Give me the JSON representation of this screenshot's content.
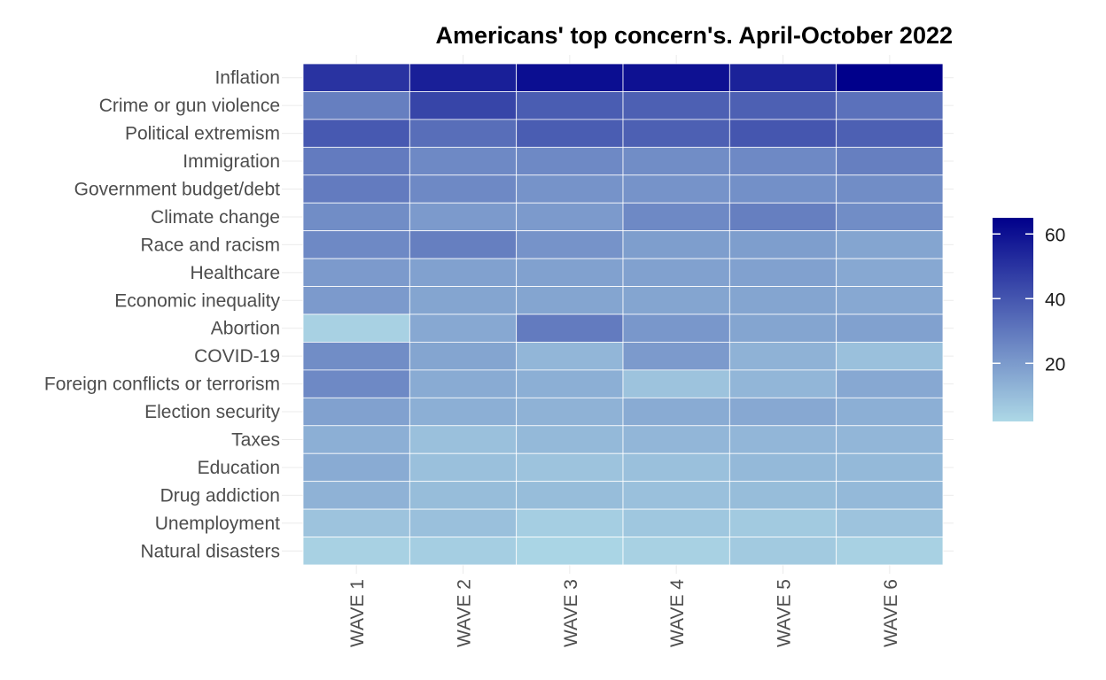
{
  "chart_data": {
    "type": "heatmap",
    "title": "Americans' top concern's. April-October 2022",
    "xlabel": "",
    "ylabel": "",
    "x": [
      "WAVE 1",
      "WAVE 2",
      "WAVE 3",
      "WAVE 4",
      "WAVE 5",
      "WAVE 6"
    ],
    "y": [
      "Inflation",
      "Crime or gun violence",
      "Political extremism",
      "Immigration",
      "Government budget/debt",
      "Climate change",
      "Race and racism",
      "Healthcare",
      "Economic inequality",
      "Abortion",
      "COVID-19",
      "Foreign conflicts or terrorism",
      "Election security",
      "Taxes",
      "Education",
      "Drug addiction",
      "Unemployment",
      "Natural disasters"
    ],
    "values": [
      [
        50,
        56,
        61,
        60,
        55,
        65
      ],
      [
        28,
        45,
        38,
        37,
        37,
        32
      ],
      [
        39,
        33,
        38,
        37,
        40,
        37
      ],
      [
        29,
        25,
        25,
        24,
        25,
        28
      ],
      [
        29,
        25,
        22,
        22,
        23,
        24
      ],
      [
        24,
        20,
        20,
        25,
        28,
        24
      ],
      [
        25,
        28,
        22,
        19,
        19,
        17
      ],
      [
        20,
        18,
        18,
        18,
        18,
        16
      ],
      [
        20,
        17,
        17,
        17,
        17,
        16
      ],
      [
        4,
        16,
        29,
        21,
        17,
        18
      ],
      [
        24,
        17,
        12,
        20,
        13,
        9
      ],
      [
        25,
        15,
        14,
        8,
        12,
        16
      ],
      [
        18,
        14,
        13,
        15,
        16,
        14
      ],
      [
        14,
        9,
        11,
        12,
        12,
        12
      ],
      [
        15,
        9,
        8,
        9,
        11,
        11
      ],
      [
        13,
        10,
        10,
        9,
        10,
        11
      ],
      [
        8,
        9,
        5,
        7,
        6,
        8
      ],
      [
        4,
        5,
        3,
        4,
        6,
        4
      ]
    ],
    "legend": {
      "position": "right",
      "min": 2,
      "max": 65,
      "ticks": [
        20,
        40,
        60
      ],
      "low_color": "#add8e6",
      "high_color": "#00008b"
    },
    "grid": true
  }
}
